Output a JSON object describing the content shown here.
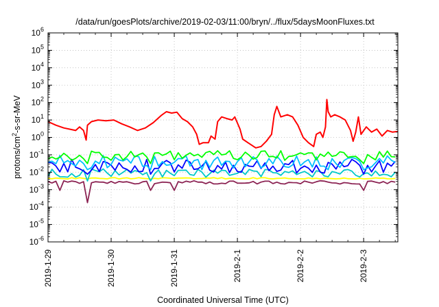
{
  "chart_data": {
    "type": "line",
    "title": "/data/run/goesPlots/archive/2019-02-03/11:00/bryn/../flux/5daysMoonFluxes.txt",
    "xlabel": "Coordinated Universal Time (UTC)",
    "ylabel": {
      "prefix": "protons/cm",
      "sup": "2",
      "suffix": "-s-sr-MeV"
    },
    "yscale": "log",
    "ylim": [
      1e-06,
      1000000.0
    ],
    "xlim": [
      "2019-01-29",
      "2019-02-03 13:00"
    ],
    "grid": true,
    "x_ticks": [
      "2019-1-29",
      "2019-1-30",
      "2019-1-31",
      "2019-2-1",
      "2019-2-2",
      "2019-2-3"
    ],
    "y_ticks": [
      {
        "base": "10",
        "exp": "6"
      },
      {
        "base": "10",
        "exp": "5"
      },
      {
        "base": "10",
        "exp": "4"
      },
      {
        "base": "10",
        "exp": "3"
      },
      {
        "base": "10",
        "exp": "2"
      },
      {
        "base": "10",
        "exp": "1"
      },
      {
        "base": "10",
        "exp": "0"
      },
      {
        "base": "10",
        "exp": "-1"
      },
      {
        "base": "10",
        "exp": "-2"
      },
      {
        "base": "10",
        "exp": "-3"
      },
      {
        "base": "10",
        "exp": "-4"
      },
      {
        "base": "10",
        "exp": "-5"
      },
      {
        "base": "10",
        "exp": "-6"
      }
    ],
    "series": [
      {
        "color": "#ff0000",
        "points": [
          [
            "2019-01-29 00:00",
            8
          ],
          [
            "2019-01-29 03:00",
            5
          ],
          [
            "2019-01-29 06:00",
            3.5
          ],
          [
            "2019-01-29 09:00",
            2.8
          ],
          [
            "2019-01-29 10:30",
            2.5
          ],
          [
            "2019-01-29 12:00",
            4
          ],
          [
            "2019-01-29 13:30",
            2.5
          ],
          [
            "2019-01-29 14:30",
            0.7
          ],
          [
            "2019-01-29 15:00",
            5
          ],
          [
            "2019-01-29 16:30",
            8
          ],
          [
            "2019-01-29 19:00",
            10
          ],
          [
            "2019-01-29 22:00",
            9
          ],
          [
            "2019-01-30 01:00",
            10
          ],
          [
            "2019-01-30 04:00",
            6
          ],
          [
            "2019-01-30 07:00",
            4
          ],
          [
            "2019-01-30 10:00",
            2.5
          ],
          [
            "2019-01-30 13:00",
            3.5
          ],
          [
            "2019-01-30 16:00",
            7
          ],
          [
            "2019-01-30 19:00",
            18
          ],
          [
            "2019-01-30 21:00",
            30
          ],
          [
            "2019-01-30 23:00",
            25
          ],
          [
            "2019-01-31 01:00",
            28
          ],
          [
            "2019-01-31 03:00",
            12
          ],
          [
            "2019-01-31 05:00",
            8
          ],
          [
            "2019-01-31 07:00",
            4
          ],
          [
            "2019-01-31 08:30",
            1.5
          ],
          [
            "2019-01-31 09:30",
            0.4
          ],
          [
            "2019-01-31 11:00",
            0.5
          ],
          [
            "2019-01-31 13:00",
            0.5
          ],
          [
            "2019-01-31 14:00",
            1.2
          ],
          [
            "2019-01-31 15:30",
            0.8
          ],
          [
            "2019-01-31 16:30",
            8
          ],
          [
            "2019-01-31 18:00",
            15
          ],
          [
            "2019-01-31 20:00",
            12
          ],
          [
            "2019-01-31 22:00",
            10
          ],
          [
            "2019-01-31 23:00",
            15
          ],
          [
            "2019-02-01 01:00",
            3
          ],
          [
            "2019-02-01 02:00",
            0.8
          ],
          [
            "2019-02-01 04:00",
            0.5
          ],
          [
            "2019-02-01 07:00",
            0.25
          ],
          [
            "2019-02-01 09:00",
            0.3
          ],
          [
            "2019-02-01 11:00",
            0.6
          ],
          [
            "2019-02-01 13:00",
            1.5
          ],
          [
            "2019-02-01 14:00",
            20
          ],
          [
            "2019-02-01 15:00",
            60
          ],
          [
            "2019-02-01 16:30",
            15
          ],
          [
            "2019-02-01 19:00",
            20
          ],
          [
            "2019-02-01 21:00",
            15
          ],
          [
            "2019-02-01 23:00",
            5
          ],
          [
            "2019-02-02 01:00",
            1
          ],
          [
            "2019-02-02 03:00",
            0.5
          ],
          [
            "2019-02-02 05:00",
            0.3
          ],
          [
            "2019-02-02 06:00",
            1.5
          ],
          [
            "2019-02-02 07:30",
            2
          ],
          [
            "2019-02-02 08:30",
            1
          ],
          [
            "2019-02-02 09:30",
            4
          ],
          [
            "2019-02-02 10:00",
            150
          ],
          [
            "2019-02-02 10:30",
            30
          ],
          [
            "2019-02-02 11:30",
            15
          ],
          [
            "2019-02-02 13:00",
            20
          ],
          [
            "2019-02-02 15:00",
            15
          ],
          [
            "2019-02-02 17:00",
            10
          ],
          [
            "2019-02-02 19:00",
            2.5
          ],
          [
            "2019-02-02 20:00",
            0.6
          ],
          [
            "2019-02-02 21:00",
            2
          ],
          [
            "2019-02-02 22:00",
            15
          ],
          [
            "2019-02-02 23:00",
            1.5
          ],
          [
            "2019-02-03 01:00",
            4
          ],
          [
            "2019-02-03 03:00",
            2
          ],
          [
            "2019-02-03 05:00",
            3
          ],
          [
            "2019-02-03 07:00",
            1.2
          ],
          [
            "2019-02-03 09:00",
            2.5
          ],
          [
            "2019-02-03 11:00",
            2
          ],
          [
            "2019-02-03 13:00",
            2.2
          ]
        ]
      },
      {
        "color": "#00ff00",
        "level": 0.09,
        "variation": 0.35,
        "dips": [
          "2019-01-29 14:30",
          "2019-01-30 14:30",
          "2019-02-03 00:00"
        ]
      },
      {
        "color": "#00bfff",
        "level": 0.04,
        "variation": 0.45,
        "dips": [
          "2019-01-29 14:30",
          "2019-01-30 14:30",
          "2019-01-31 11:00",
          "2019-02-02 11:00",
          "2019-02-03 00:00"
        ]
      },
      {
        "color": "#0000ff",
        "level": 0.022,
        "variation": 0.5,
        "dips": [
          "2019-01-29 14:30",
          "2019-01-30 14:30",
          "2019-02-03 00:00"
        ]
      },
      {
        "color": "#00c8c8",
        "level": 0.009,
        "variation": 0.3,
        "dips": [
          "2019-01-29 14:30",
          "2019-01-30 14:30"
        ]
      },
      {
        "color": "#ffff00",
        "level": 0.0045,
        "variation": 0.05,
        "dips": []
      },
      {
        "color": "#8b2252",
        "level": 0.0026,
        "variation": 0.12,
        "dips": [
          "2019-01-29 14:30",
          "2019-01-29 04:00",
          "2019-01-30 14:30",
          "2019-01-31 00:00",
          "2019-02-03 00:00"
        ],
        "deep_dip": [
          "2019-01-29 14:30",
          0.00018
        ]
      }
    ]
  }
}
